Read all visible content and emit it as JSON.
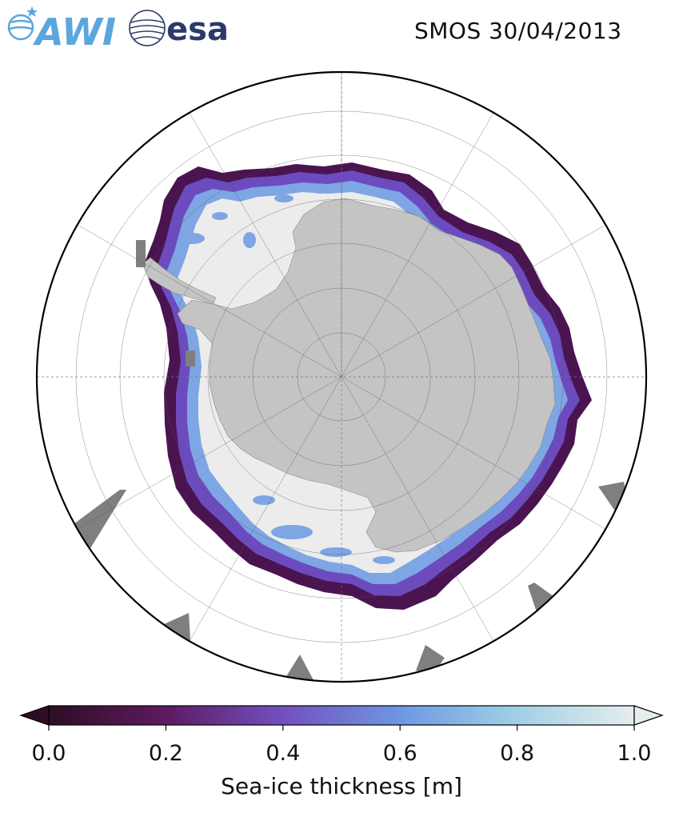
{
  "title": "SMOS 30/04/2013",
  "logos": {
    "awi": "AWI",
    "esa": "esa"
  },
  "colorbar": {
    "label": "Sea-ice thickness [m]",
    "min": 0.0,
    "max": 1.0,
    "ticks": [
      {
        "value": 0.0,
        "label": "0.0"
      },
      {
        "value": 0.2,
        "label": "0.2"
      },
      {
        "value": 0.4,
        "label": "0.4"
      },
      {
        "value": 0.6,
        "label": "0.6"
      },
      {
        "value": 0.8,
        "label": "0.8"
      },
      {
        "value": 1.0,
        "label": "1.0"
      }
    ],
    "stops": [
      {
        "value": 0.0,
        "color": "#2e0d24"
      },
      {
        "value": 0.2,
        "color": "#5e1a62"
      },
      {
        "value": 0.4,
        "color": "#7350bf"
      },
      {
        "value": 0.6,
        "color": "#6e97e2"
      },
      {
        "value": 0.8,
        "color": "#a0d0e6"
      },
      {
        "value": 1.0,
        "color": "#e6eded"
      }
    ],
    "extend": "both"
  },
  "colors": {
    "land": "#c4c4c4",
    "missing": "#7f7f7f",
    "ocean": "#ffffff",
    "thick_ice": "#ececec",
    "ice_edge": "#4a1450",
    "ice_mid": "#6c4bbf",
    "ice_blue": "#7ea6e4"
  },
  "projection": "south-polar-stereographic"
}
